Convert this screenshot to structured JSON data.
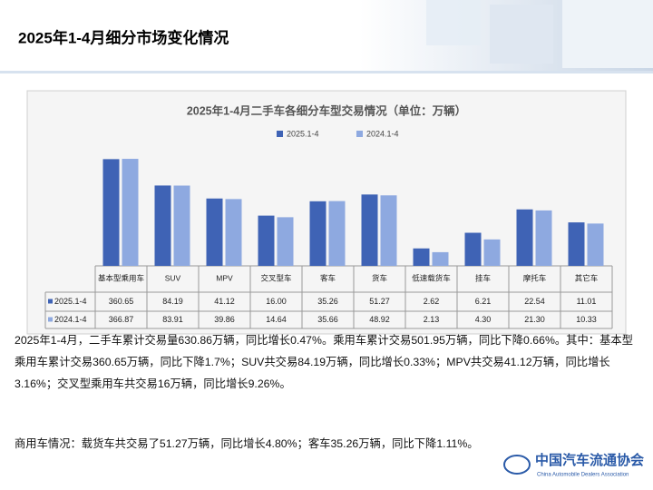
{
  "header": {
    "title": "2025年1-4月细分市场变化情况"
  },
  "chart_data": {
    "type": "bar",
    "title": "2025年1-4月二手车各细分车型交易情况（单位：万辆）",
    "categories": [
      "基本型乘用车",
      "SUV",
      "MPV",
      "交叉型车",
      "客车",
      "货车",
      "低速载货车",
      "挂车",
      "摩托车",
      "其它车"
    ],
    "series": [
      {
        "name": "2025.1-4",
        "color": "#3f63b5",
        "values": [
          360.65,
          84.19,
          41.12,
          16.0,
          35.26,
          51.27,
          2.62,
          6.21,
          22.54,
          11.01
        ],
        "value_labels": [
          "360.65",
          "84.19",
          "41.12",
          "16.00",
          "35.26",
          "51.27",
          "2.62",
          "6.21",
          "22.54",
          "11.01"
        ]
      },
      {
        "name": "2024.1-4",
        "color": "#8ea9e0",
        "values": [
          366.87,
          83.91,
          39.86,
          14.64,
          35.66,
          48.92,
          2.13,
          4.3,
          21.3,
          10.33
        ],
        "value_labels": [
          "366.87",
          "83.91",
          "39.86",
          "14.64",
          "35.66",
          "48.92",
          "2.13",
          "4.30",
          "21.30",
          "10.33"
        ]
      }
    ],
    "log_scale": true,
    "ylim": [
      1,
      1000
    ],
    "legend": "top"
  },
  "body": {
    "paragraphs": [
      "2025年1-4月，二手车累计交易量630.86万辆，同比增长0.47%。乘用车累计交易501.95万辆，同比下降0.66%。其中：基本型乘用车累计交易360.65万辆，同比下降1.7%；SUV共交易84.19万辆，同比增长0.33%；MPV共交易41.12万辆，同比增长3.16%；交叉型乘用车共交易16万辆，同比增长9.26%。",
      "商用车情况：载货车共交易了51.27万辆，同比增长4.80%；客车35.26万辆，同比下降1.11%。"
    ]
  },
  "footer": {
    "logo_cn": "中国汽车流通协会",
    "logo_en": "China Automobile Dealers Association"
  }
}
